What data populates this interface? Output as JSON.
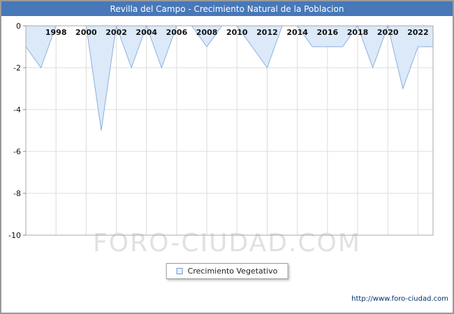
{
  "header": {
    "title": "Revilla del Campo - Crecimiento Natural de la Poblacion",
    "bg_color": "#4878b8"
  },
  "chart_data": {
    "type": "area",
    "title": "Revilla del Campo - Crecimiento Natural de la Poblacion",
    "series_name": "Crecimiento Vegetativo",
    "x": [
      1996,
      1997,
      1998,
      1999,
      2000,
      2001,
      2002,
      2003,
      2004,
      2005,
      2006,
      2007,
      2008,
      2009,
      2010,
      2011,
      2012,
      2013,
      2014,
      2015,
      2016,
      2017,
      2018,
      2019,
      2020,
      2021,
      2022,
      2023
    ],
    "values": [
      -1,
      -2,
      0,
      0,
      0,
      -5,
      0,
      -2,
      0,
      -2,
      0,
      0,
      -1,
      0,
      0,
      -1,
      -2,
      0,
      0,
      -1,
      -1,
      -1,
      0,
      -2,
      0,
      -3,
      -1,
      -1
    ],
    "xlabel": "",
    "ylabel": "",
    "ylim": [
      -10,
      0
    ],
    "y_ticks": [
      0,
      -2,
      -4,
      -6,
      -8,
      -10
    ],
    "x_ticks": [
      1998,
      2000,
      2002,
      2004,
      2006,
      2008,
      2010,
      2012,
      2014,
      2016,
      2018,
      2020,
      2022
    ],
    "grid": true,
    "legend_position": "bottom-center",
    "fill_color": "#dbe9f9",
    "line_color": "#8cb0dc"
  },
  "legend": {
    "label": "Crecimiento Vegetativo"
  },
  "watermark": "FORO-CIUDAD.COM",
  "footer": {
    "url": "http://www.foro-ciudad.com"
  }
}
